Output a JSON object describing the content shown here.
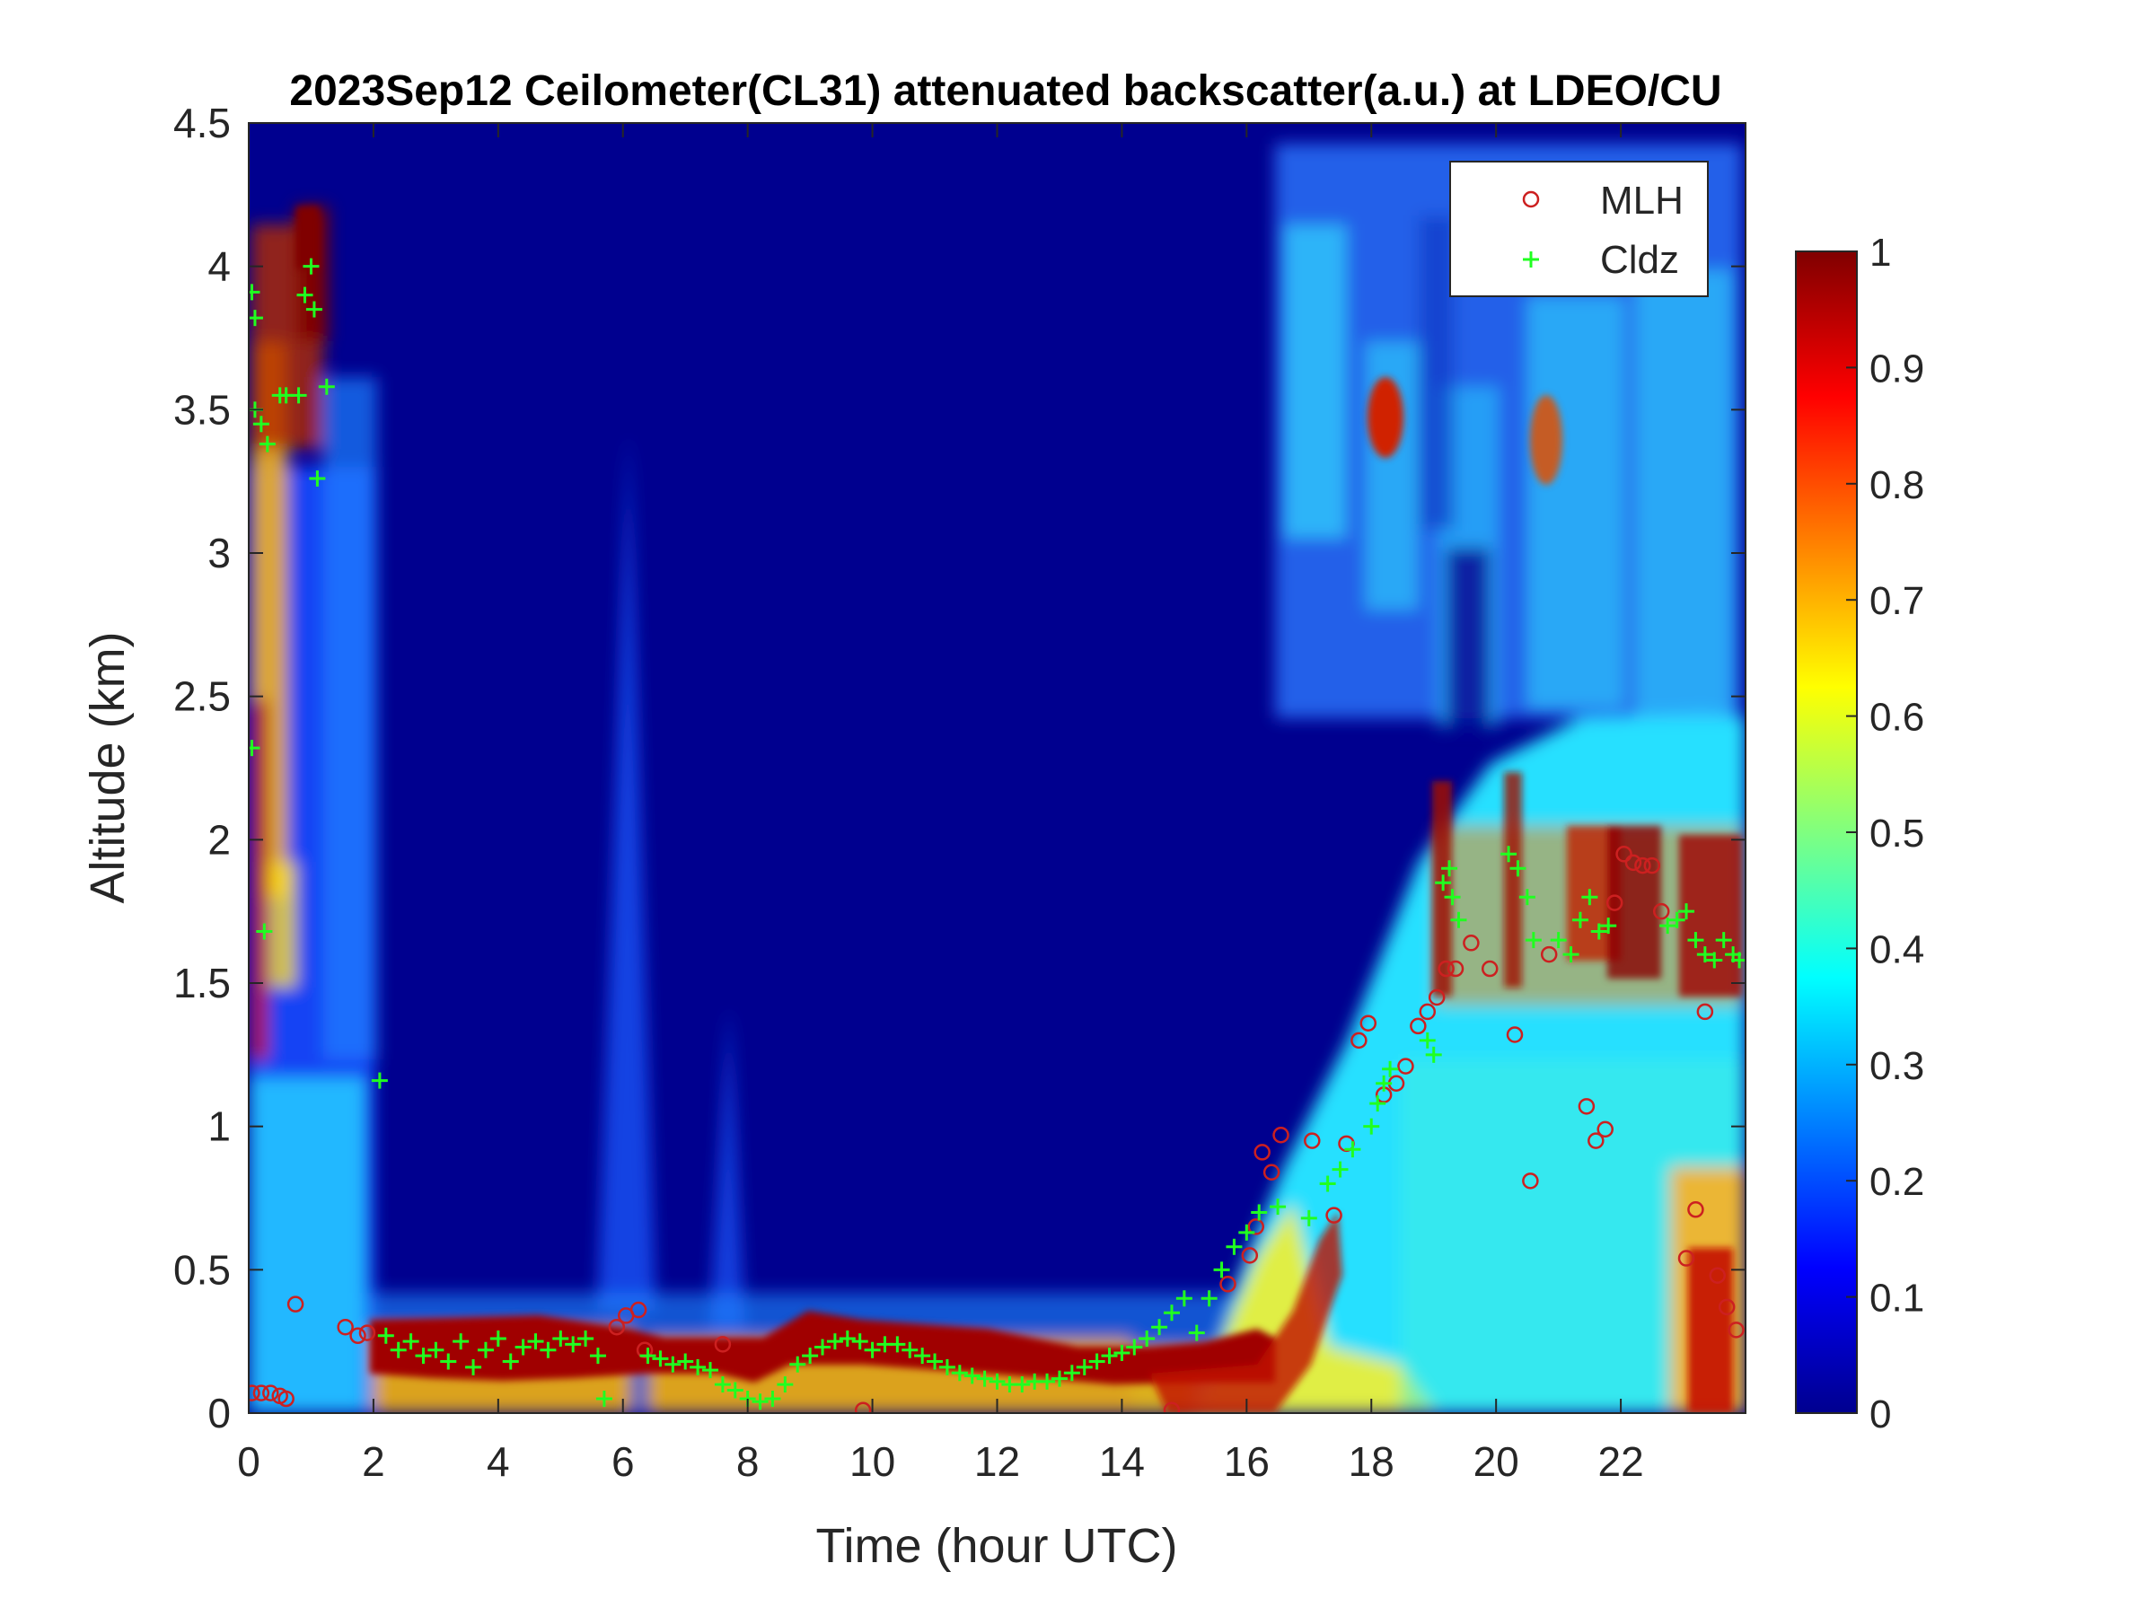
{
  "chart_data": {
    "type": "heatmap",
    "title": "2023Sep12 Ceilometer(CL31) attenuated backscatter(a.u.) at LDEO/CU",
    "xlabel": "Time (hour UTC)",
    "ylabel": "Altitude (km)",
    "xlim": [
      0,
      24
    ],
    "ylim": [
      0,
      4.5
    ],
    "xticks": [
      "0",
      "2",
      "4",
      "6",
      "8",
      "10",
      "12",
      "14",
      "16",
      "18",
      "20",
      "22"
    ],
    "yticks": [
      "0",
      "0.5",
      "1",
      "1.5",
      "2",
      "2.5",
      "3",
      "3.5",
      "4",
      "4.5"
    ],
    "colorbar": {
      "colormap": "jet",
      "range": [
        0,
        1
      ],
      "ticks": [
        "0",
        "0.1",
        "0.2",
        "0.3",
        "0.4",
        "0.5",
        "0.6",
        "0.7",
        "0.8",
        "0.9",
        "1"
      ]
    },
    "legend": {
      "position": "top-right",
      "entries": [
        {
          "label": "MLH",
          "marker": "circle",
          "color": "#cc2020"
        },
        {
          "label": "Cldz",
          "marker": "plus",
          "color": "#20ff20"
        }
      ]
    },
    "series": [
      {
        "name": "MLH",
        "points": [
          [
            0.05,
            0.07
          ],
          [
            0.2,
            0.07
          ],
          [
            0.35,
            0.07
          ],
          [
            0.5,
            0.06
          ],
          [
            0.6,
            0.05
          ],
          [
            0.75,
            0.38
          ],
          [
            1.55,
            0.3
          ],
          [
            1.75,
            0.27
          ],
          [
            1.9,
            0.28
          ],
          [
            5.9,
            0.3
          ],
          [
            6.05,
            0.34
          ],
          [
            6.25,
            0.36
          ],
          [
            6.35,
            0.22
          ],
          [
            7.6,
            0.24
          ],
          [
            9.85,
            0.01
          ],
          [
            14.8,
            0.01
          ],
          [
            15.7,
            0.45
          ],
          [
            16.05,
            0.55
          ],
          [
            16.15,
            0.65
          ],
          [
            16.25,
            0.91
          ],
          [
            16.4,
            0.84
          ],
          [
            16.55,
            0.97
          ],
          [
            17.05,
            0.95
          ],
          [
            17.4,
            0.69
          ],
          [
            17.6,
            0.94
          ],
          [
            17.8,
            1.3
          ],
          [
            17.95,
            1.36
          ],
          [
            18.2,
            1.11
          ],
          [
            18.4,
            1.15
          ],
          [
            18.55,
            1.21
          ],
          [
            18.75,
            1.35
          ],
          [
            18.9,
            1.4
          ],
          [
            19.05,
            1.45
          ],
          [
            19.2,
            1.55
          ],
          [
            19.35,
            1.55
          ],
          [
            19.6,
            1.64
          ],
          [
            19.9,
            1.55
          ],
          [
            20.3,
            1.32
          ],
          [
            20.55,
            0.81
          ],
          [
            20.85,
            1.6
          ],
          [
            21.45,
            1.07
          ],
          [
            21.6,
            0.95
          ],
          [
            21.75,
            0.99
          ],
          [
            21.9,
            1.78
          ],
          [
            22.05,
            1.95
          ],
          [
            22.2,
            1.92
          ],
          [
            22.35,
            1.91
          ],
          [
            22.5,
            1.91
          ],
          [
            22.65,
            1.75
          ],
          [
            23.05,
            0.54
          ],
          [
            23.2,
            0.71
          ],
          [
            23.35,
            1.4
          ],
          [
            23.55,
            0.48
          ],
          [
            23.7,
            0.37
          ],
          [
            23.85,
            0.29
          ]
        ]
      },
      {
        "name": "Cldz",
        "points": [
          [
            0.05,
            3.91
          ],
          [
            0.1,
            3.82
          ],
          [
            0.1,
            3.5
          ],
          [
            0.2,
            3.45
          ],
          [
            0.3,
            3.38
          ],
          [
            0.05,
            2.32
          ],
          [
            0.25,
            1.68
          ],
          [
            0.5,
            3.55
          ],
          [
            0.6,
            3.55
          ],
          [
            0.8,
            3.55
          ],
          [
            0.9,
            3.9
          ],
          [
            1.0,
            4.0
          ],
          [
            1.05,
            3.85
          ],
          [
            1.1,
            3.26
          ],
          [
            1.25,
            3.58
          ],
          [
            2.1,
            1.16
          ],
          [
            2.2,
            0.27
          ],
          [
            2.4,
            0.22
          ],
          [
            2.6,
            0.25
          ],
          [
            2.8,
            0.2
          ],
          [
            3.0,
            0.22
          ],
          [
            3.2,
            0.18
          ],
          [
            3.4,
            0.25
          ],
          [
            3.6,
            0.16
          ],
          [
            3.8,
            0.22
          ],
          [
            4.0,
            0.26
          ],
          [
            4.2,
            0.18
          ],
          [
            4.4,
            0.23
          ],
          [
            4.6,
            0.25
          ],
          [
            4.8,
            0.22
          ],
          [
            5.0,
            0.26
          ],
          [
            5.2,
            0.24
          ],
          [
            5.4,
            0.26
          ],
          [
            5.6,
            0.2
          ],
          [
            5.7,
            0.05
          ],
          [
            6.4,
            0.2
          ],
          [
            6.6,
            0.19
          ],
          [
            6.8,
            0.17
          ],
          [
            7.0,
            0.18
          ],
          [
            7.2,
            0.16
          ],
          [
            7.4,
            0.15
          ],
          [
            7.6,
            0.1
          ],
          [
            7.8,
            0.08
          ],
          [
            8.0,
            0.05
          ],
          [
            8.2,
            0.04
          ],
          [
            8.4,
            0.05
          ],
          [
            8.6,
            0.1
          ],
          [
            8.8,
            0.17
          ],
          [
            9.0,
            0.2
          ],
          [
            9.2,
            0.23
          ],
          [
            9.4,
            0.25
          ],
          [
            9.6,
            0.26
          ],
          [
            9.8,
            0.25
          ],
          [
            10.0,
            0.22
          ],
          [
            10.2,
            0.24
          ],
          [
            10.4,
            0.24
          ],
          [
            10.6,
            0.22
          ],
          [
            10.8,
            0.2
          ],
          [
            11.0,
            0.18
          ],
          [
            11.2,
            0.16
          ],
          [
            11.4,
            0.14
          ],
          [
            11.6,
            0.13
          ],
          [
            11.8,
            0.12
          ],
          [
            12.0,
            0.11
          ],
          [
            12.2,
            0.1
          ],
          [
            12.4,
            0.1
          ],
          [
            12.6,
            0.11
          ],
          [
            12.8,
            0.11
          ],
          [
            13.0,
            0.12
          ],
          [
            13.2,
            0.14
          ],
          [
            13.4,
            0.16
          ],
          [
            13.6,
            0.18
          ],
          [
            13.8,
            0.2
          ],
          [
            14.0,
            0.21
          ],
          [
            14.2,
            0.23
          ],
          [
            14.4,
            0.26
          ],
          [
            14.6,
            0.3
          ],
          [
            14.8,
            0.35
          ],
          [
            15.0,
            0.4
          ],
          [
            15.2,
            0.28
          ],
          [
            15.4,
            0.4
          ],
          [
            15.6,
            0.5
          ],
          [
            15.8,
            0.58
          ],
          [
            16.0,
            0.63
          ],
          [
            16.2,
            0.7
          ],
          [
            16.5,
            0.72
          ],
          [
            17.0,
            0.68
          ],
          [
            17.3,
            0.8
          ],
          [
            17.5,
            0.85
          ],
          [
            17.7,
            0.92
          ],
          [
            18.0,
            1.0
          ],
          [
            18.1,
            1.08
          ],
          [
            18.2,
            1.15
          ],
          [
            18.3,
            1.2
          ],
          [
            18.9,
            1.3
          ],
          [
            19.0,
            1.25
          ],
          [
            19.15,
            1.85
          ],
          [
            19.25,
            1.9
          ],
          [
            19.3,
            1.8
          ],
          [
            19.4,
            1.72
          ],
          [
            20.2,
            1.95
          ],
          [
            20.35,
            1.9
          ],
          [
            20.5,
            1.8
          ],
          [
            20.6,
            1.65
          ],
          [
            21.0,
            1.65
          ],
          [
            21.2,
            1.6
          ],
          [
            21.35,
            1.72
          ],
          [
            21.5,
            1.8
          ],
          [
            21.65,
            1.68
          ],
          [
            21.8,
            1.7
          ],
          [
            22.75,
            1.7
          ],
          [
            22.9,
            1.72
          ],
          [
            23.05,
            1.75
          ],
          [
            23.2,
            1.65
          ],
          [
            23.35,
            1.6
          ],
          [
            23.5,
            1.58
          ],
          [
            23.65,
            1.65
          ],
          [
            23.8,
            1.6
          ],
          [
            23.9,
            1.58
          ]
        ]
      }
    ]
  }
}
